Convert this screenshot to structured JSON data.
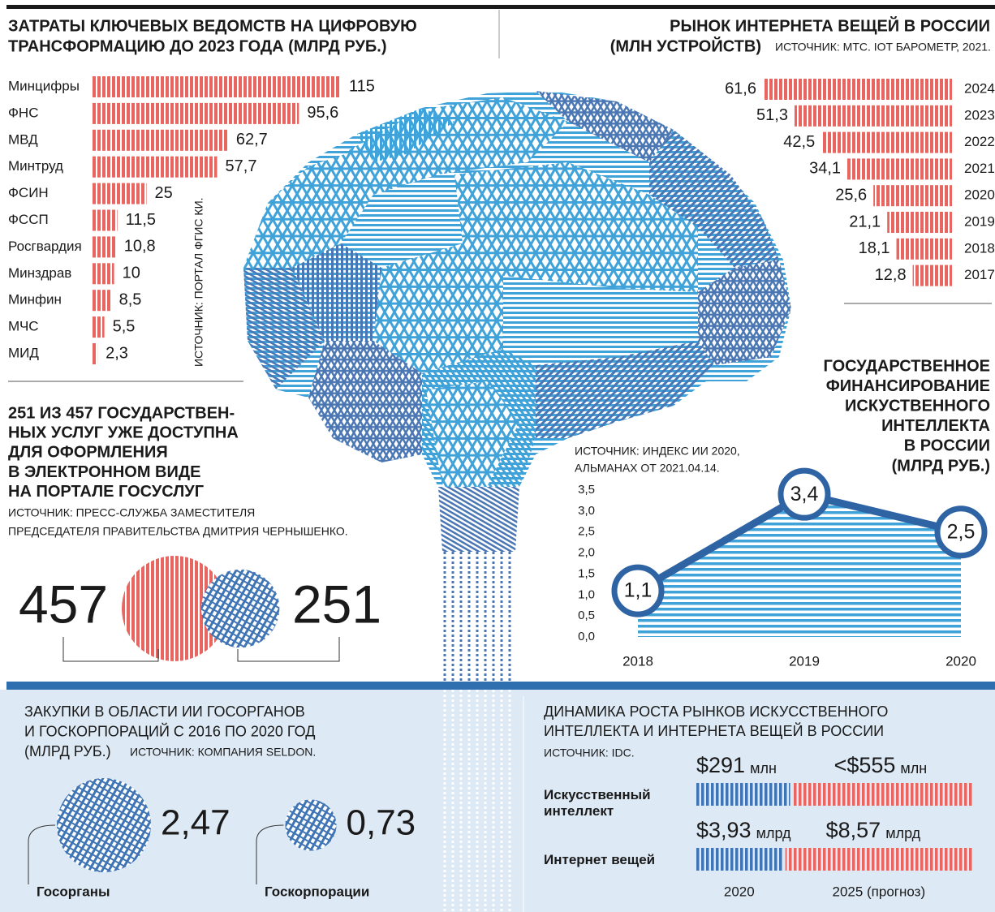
{
  "chart_data": [
    {
      "type": "bar",
      "title_lines": [
        "ЗАТРАТЫ КЛЮЧЕВЫХ ВЕДОМСТВ НА ЦИФРОВУЮ",
        "ТРАНСФОРМАЦИЮ ДО 2023 ГОДА (МЛРД РУБ.)"
      ],
      "source": "ИСТОЧНИК: ПОРТАЛ ФГИС КИ.",
      "categories": [
        "Минцифры",
        "ФНС",
        "МВД",
        "Минтруд",
        "ФСИН",
        "ФССП",
        "Росгвардия",
        "Минздрав",
        "Минфин",
        "МЧС",
        "МИД"
      ],
      "values": [
        115,
        95.6,
        62.7,
        57.7,
        25,
        11.5,
        10.8,
        10,
        8.5,
        5.5,
        2.3
      ],
      "value_labels": [
        "115",
        "95,6",
        "62,7",
        "57,7",
        "25",
        "11,5",
        "10,8",
        "10",
        "8,5",
        "5,5",
        "2,3"
      ],
      "color": "#e8665f"
    },
    {
      "type": "bar",
      "title_lines": [
        "РЫНОК ИНТЕРНЕТА ВЕЩЕЙ В РОССИИ",
        "(МЛН УСТРОЙСТВ)"
      ],
      "source": "ИСТОЧНИК: МТС. IOT БАРОМЕТР, 2021.",
      "categories": [
        "2024",
        "2023",
        "2022",
        "2021",
        "2020",
        "2019",
        "2018",
        "2017"
      ],
      "values": [
        61.6,
        51.3,
        42.5,
        34.1,
        25.6,
        21.1,
        18.1,
        12.8
      ],
      "value_labels": [
        "61,6",
        "51,3",
        "42,5",
        "34,1",
        "25,6",
        "21,1",
        "18,1",
        "12,8"
      ],
      "color": "#e8665f"
    },
    {
      "type": "venn",
      "title_lines": [
        "251 ИЗ 457 ГОСУДАРСТВЕН-",
        "НЫХ УСЛУГ УЖЕ ДОСТУПНА",
        "ДЛЯ ОФОРМЛЕНИЯ",
        "В ЭЛЕКТРОННОМ ВИДЕ",
        "НА ПОРТАЛЕ ГОСУСЛУГ"
      ],
      "source_lines": [
        "ИСТОЧНИК: ПРЕСС-СЛУЖБА ЗАМЕСТИТЕЛЯ",
        "ПРЕДСЕДАТЕЛЯ ПРАВИТЕЛЬСТВА ДМИТРИЯ ЧЕРНЫШЕНКО."
      ],
      "values": [
        457,
        251
      ],
      "colors": [
        "#e8665f",
        "#3f74b5"
      ]
    },
    {
      "type": "line",
      "title_lines": [
        "ГОСУДАРСТВЕННОЕ",
        "ФИНАНСИРОВАНИЕ",
        "ИСКУСТВЕННОГО",
        "ИНТЕЛЛЕКТА",
        "В РОССИИ",
        "(МЛРД РУБ.)"
      ],
      "source_lines": [
        "ИСТОЧНИК: ИНДЕКС ИИ 2020,",
        "АЛЬМАНАХ ОТ 2021.04.14."
      ],
      "categories": [
        "2018",
        "2019",
        "2020"
      ],
      "values": [
        1.1,
        3.4,
        2.5
      ],
      "value_labels": [
        "1,1",
        "3,4",
        "2,5"
      ],
      "ylim": [
        0,
        3.5
      ],
      "yticks": [
        {
          "value": 0,
          "label": "0,0"
        },
        {
          "value": 0.5,
          "label": "0,5"
        },
        {
          "value": 1,
          "label": "1,0"
        },
        {
          "value": 1.5,
          "label": "1,5"
        },
        {
          "value": 2,
          "label": "2,0"
        },
        {
          "value": 2.5,
          "label": "2,5"
        },
        {
          "value": 3,
          "label": "3,0"
        },
        {
          "value": 3.5,
          "label": "3,5"
        }
      ],
      "color": "#2e63a4",
      "area_color": "#3fa2d9"
    },
    {
      "type": "bubble",
      "title_lines": [
        "ЗАКУПКИ В ОБЛАСТИ ИИ ГОСОРГАНОВ",
        "И ГОСКОРПОРАЦИЙ С 2016 ПО 2020 ГОД",
        "(МЛРД РУБ.)"
      ],
      "source": "ИСТОЧНИК: КОМПАНИЯ SELDON.",
      "categories": [
        "Госорганы",
        "Госкорпорации"
      ],
      "values": [
        2.47,
        0.73
      ],
      "value_labels": [
        "2,47",
        "0,73"
      ],
      "color": "#3f74b5"
    },
    {
      "type": "bar",
      "stacked": true,
      "title_lines": [
        "ДИНАМИКА РОСТА РЫНКОВ ИСКУССТВЕННОГО",
        "ИНТЕЛЛЕКТА И ИНТЕРНЕТА ВЕЩЕЙ В РОССИИ"
      ],
      "source": "ИСТОЧНИК: IDC.",
      "categories": [
        "Искусственный интеллект",
        "Интернет вещей"
      ],
      "row_units": [
        "млн",
        "млрд"
      ],
      "series": [
        {
          "name": "2020",
          "color": "#3f74b5",
          "values": [
            291,
            3.93
          ],
          "value_labels": [
            "$291",
            "$3,93"
          ]
        },
        {
          "name": "2025 (прогноз)",
          "color": "#e8665f",
          "values": [
            555,
            8.57
          ],
          "value_labels": [
            "<$555",
            "$8,57"
          ]
        }
      ]
    }
  ]
}
